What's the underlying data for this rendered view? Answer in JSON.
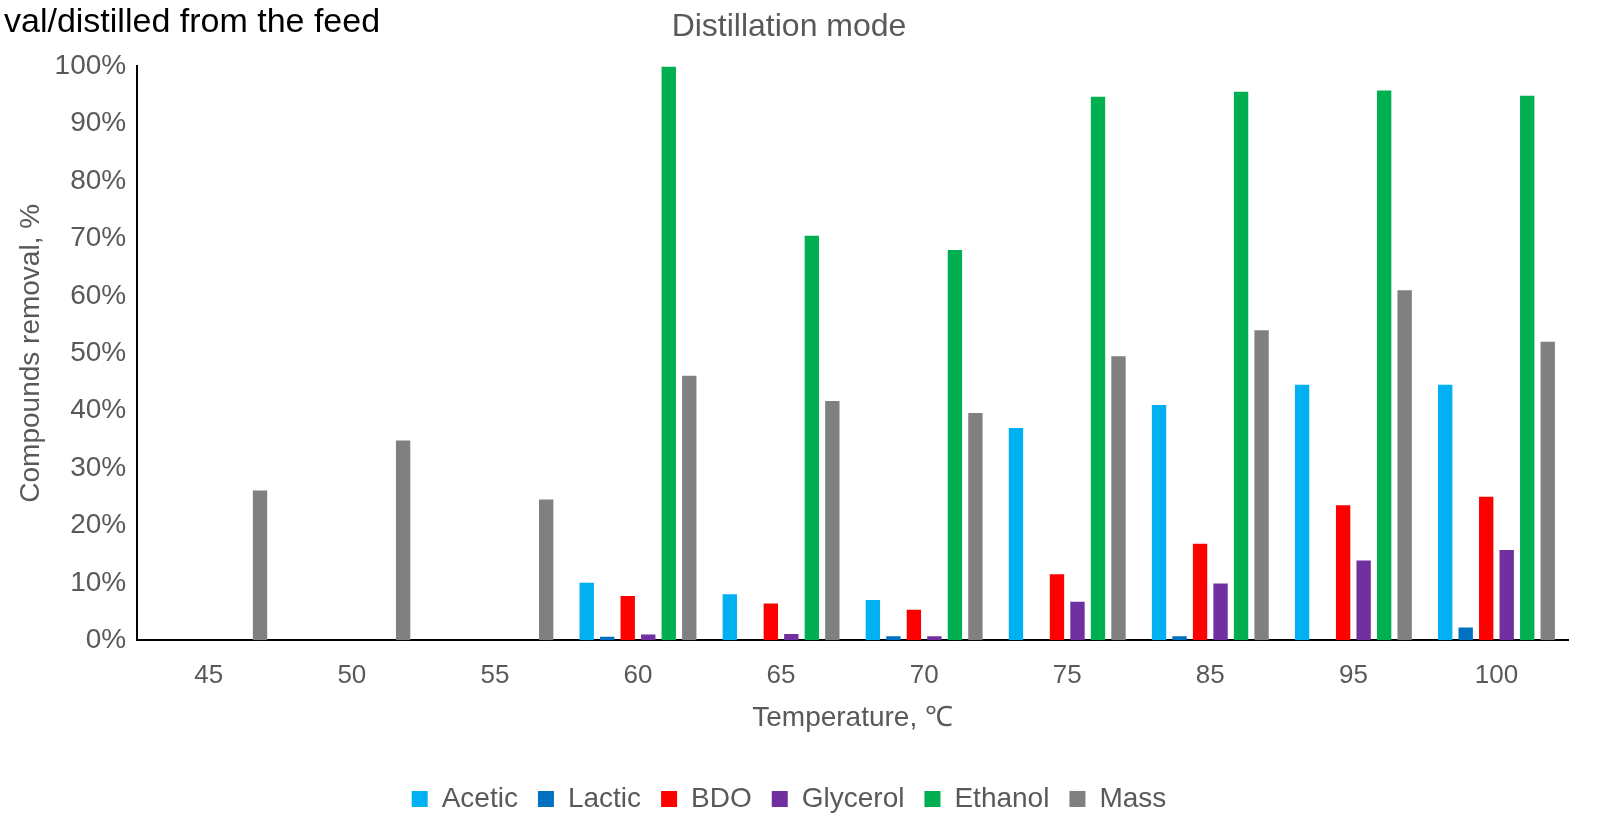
{
  "chart_data": {
    "type": "bar",
    "title": "Distillation mode",
    "xlabel": "Temperature, ℃",
    "ylabel": "Compounds removal, %",
    "annotations": [
      "val/distilled from the feed"
    ],
    "categories": [
      "45",
      "50",
      "55",
      "60",
      "65",
      "70",
      "75",
      "85",
      "95",
      "100"
    ],
    "series": [
      {
        "name": "Acetic",
        "color": "#00b0f0",
        "values": [
          null,
          null,
          null,
          10,
          8,
          7,
          37,
          41,
          44.5,
          44.5
        ]
      },
      {
        "name": "Lactic",
        "color": "#0070c0",
        "values": [
          null,
          null,
          null,
          0.6,
          null,
          0.7,
          null,
          0.7,
          null,
          2.2
        ]
      },
      {
        "name": "BDO",
        "color": "#ff0000",
        "values": [
          null,
          null,
          null,
          7.7,
          6.4,
          5.3,
          11.5,
          16.8,
          23.5,
          25
        ]
      },
      {
        "name": "Glycerol",
        "color": "#7030a0",
        "values": [
          null,
          null,
          null,
          1.0,
          1.1,
          0.7,
          6.7,
          9.9,
          13.9,
          15.7
        ]
      },
      {
        "name": "Ethanol",
        "color": "#00b050",
        "values": [
          null,
          null,
          null,
          100,
          70.5,
          68,
          94.7,
          95.6,
          95.8,
          94.9
        ]
      },
      {
        "name": "Mass",
        "color": "#808080",
        "values": [
          26.1,
          34.8,
          24.5,
          46.1,
          41.7,
          39.6,
          49.5,
          54,
          61,
          52
        ]
      }
    ],
    "ylim": [
      0,
      100
    ],
    "yticks": [
      {
        "value": 0,
        "label": "0%"
      },
      {
        "value": 10,
        "label": "10%"
      },
      {
        "value": 20,
        "label": "20%"
      },
      {
        "value": 30,
        "label": "30%"
      },
      {
        "value": 40,
        "label": "40%"
      },
      {
        "value": 50,
        "label": "50%"
      },
      {
        "value": 60,
        "label": "60%"
      },
      {
        "value": 70,
        "label": "70%"
      },
      {
        "value": 80,
        "label": "80%"
      },
      {
        "value": 90,
        "label": "90%"
      },
      {
        "value": 100,
        "label": "100%"
      }
    ],
    "grid": false,
    "legend": "bottom"
  }
}
